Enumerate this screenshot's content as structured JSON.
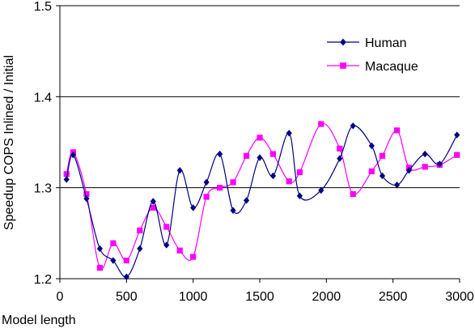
{
  "chart_data": {
    "type": "line",
    "title": "",
    "xlabel": "Model length",
    "ylabel": "Speedup COPS Inlined / Initial",
    "xlim": [
      0,
      3000
    ],
    "ylim": [
      1.2,
      1.5
    ],
    "xticks": [
      0,
      500,
      1000,
      1500,
      2000,
      2500,
      3000
    ],
    "yticks": [
      1.2,
      1.3,
      1.4,
      1.5
    ],
    "xtick_labels": [
      "0",
      "500",
      "1000",
      "1500",
      "2000",
      "2500",
      "3000"
    ],
    "ytick_labels": [
      "1.2",
      "1.3",
      "1.4",
      "1.5"
    ],
    "grid": "horizontal",
    "legend_position": "top-right",
    "smooth_lines": true,
    "series": [
      {
        "name": "Human",
        "color": "#000080",
        "marker": "diamond",
        "x": [
          50,
          100,
          200,
          300,
          400,
          500,
          600,
          700,
          800,
          900,
          1000,
          1100,
          1200,
          1300,
          1400,
          1500,
          1600,
          1720,
          1800,
          1960,
          2100,
          2200,
          2340,
          2420,
          2530,
          2620,
          2740,
          2850,
          2980
        ],
        "y": [
          1.309,
          1.336,
          1.288,
          1.233,
          1.22,
          1.202,
          1.233,
          1.285,
          1.237,
          1.319,
          1.278,
          1.306,
          1.337,
          1.275,
          1.286,
          1.333,
          1.313,
          1.36,
          1.291,
          1.297,
          1.332,
          1.368,
          1.346,
          1.313,
          1.303,
          1.319,
          1.337,
          1.326,
          1.358
        ]
      },
      {
        "name": "Macaque",
        "color": "#FF00FF",
        "marker": "square",
        "x": [
          50,
          100,
          200,
          300,
          400,
          500,
          600,
          700,
          800,
          900,
          1000,
          1100,
          1200,
          1300,
          1400,
          1500,
          1600,
          1720,
          1800,
          1960,
          2100,
          2200,
          2340,
          2420,
          2530,
          2620,
          2740,
          2850,
          2980
        ],
        "y": [
          1.315,
          1.339,
          1.293,
          1.212,
          1.239,
          1.22,
          1.253,
          1.278,
          1.257,
          1.231,
          1.224,
          1.29,
          1.3,
          1.306,
          1.335,
          1.355,
          1.337,
          1.307,
          1.317,
          1.37,
          1.343,
          1.293,
          1.318,
          1.335,
          1.363,
          1.322,
          1.323,
          1.325,
          1.336
        ]
      }
    ]
  }
}
